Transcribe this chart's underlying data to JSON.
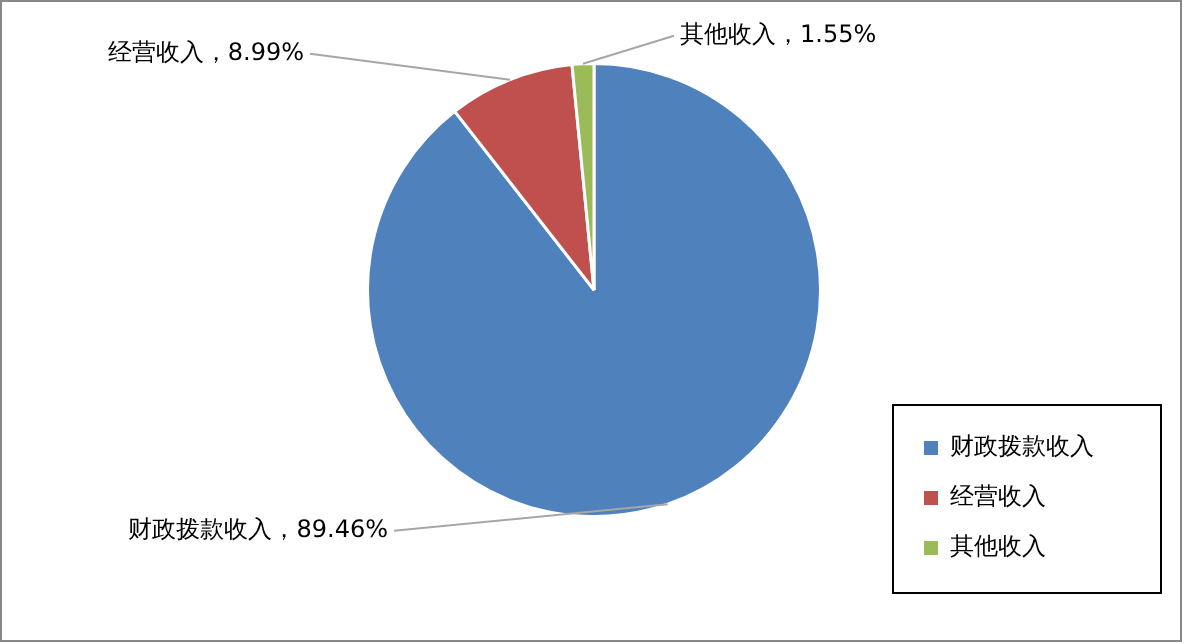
{
  "chart_data": {
    "type": "pie",
    "categories": [
      "财政拨款收入",
      "经营收入",
      "其他收入"
    ],
    "values": [
      89.46,
      8.99,
      1.55
    ],
    "colors": [
      "#4f81bd",
      "#c0504d",
      "#9bbb59"
    ],
    "value_labels": [
      "财政拨款收入，89.46%",
      "经营收入，8.99%",
      "其他收入，1.55%"
    ],
    "legend": "bottom right"
  }
}
